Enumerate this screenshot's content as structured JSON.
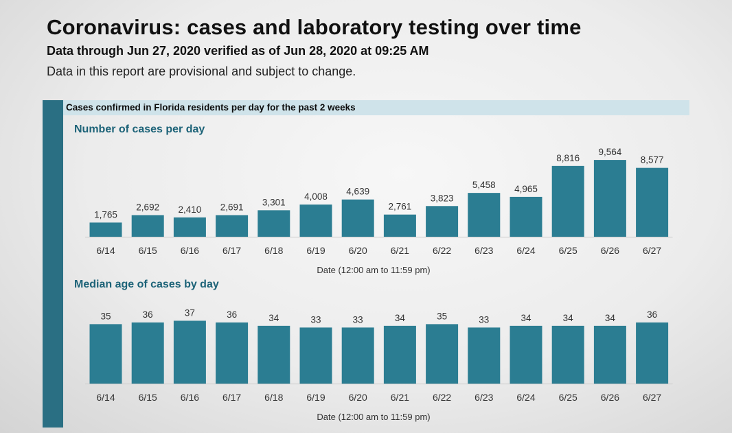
{
  "header": {
    "title": "Coronavirus: cases and laboratory testing over time",
    "subtitle": "Data through Jun 27, 2020 verified as of Jun 28, 2020 at 09:25 AM",
    "disclaimer": "Data in this report are provisional and subject to change."
  },
  "section": {
    "title": "Cases confirmed in Florida residents per day for the past 2 weeks"
  },
  "colors": {
    "bar": "#2b7d92",
    "sidebar": "#2a6f83",
    "section_bar": "#cfe3ea",
    "panel_title": "#1d6378"
  },
  "chart_data": [
    {
      "type": "bar",
      "title": "Number of cases per day",
      "xlabel": "Date (12:00 am to 11:59 pm)",
      "ylabel": "",
      "categories": [
        "6/14",
        "6/15",
        "6/16",
        "6/17",
        "6/18",
        "6/19",
        "6/20",
        "6/21",
        "6/22",
        "6/23",
        "6/24",
        "6/25",
        "6/26",
        "6/27"
      ],
      "values": [
        1765,
        2692,
        2410,
        2691,
        3301,
        4008,
        4639,
        2761,
        3823,
        5458,
        4965,
        8816,
        9564,
        8577
      ],
      "value_labels": [
        "1,765",
        "2,692",
        "2,410",
        "2,691",
        "3,301",
        "4,008",
        "4,639",
        "2,761",
        "3,823",
        "5,458",
        "4,965",
        "8,816",
        "9,564",
        "8,577"
      ],
      "ylim": [
        0,
        10000
      ],
      "grid": false
    },
    {
      "type": "bar",
      "title": "Median age of cases by day",
      "xlabel": "Date (12:00 am to 11:59 pm)",
      "ylabel": "",
      "categories": [
        "6/14",
        "6/15",
        "6/16",
        "6/17",
        "6/18",
        "6/19",
        "6/20",
        "6/21",
        "6/22",
        "6/23",
        "6/24",
        "6/25",
        "6/26",
        "6/27"
      ],
      "values": [
        35,
        36,
        37,
        36,
        34,
        33,
        33,
        34,
        35,
        33,
        34,
        34,
        34,
        36
      ],
      "value_labels": [
        "35",
        "36",
        "37",
        "36",
        "34",
        "33",
        "33",
        "34",
        "35",
        "33",
        "34",
        "34",
        "34",
        "36"
      ],
      "ylim": [
        0,
        40
      ],
      "grid": false
    }
  ]
}
